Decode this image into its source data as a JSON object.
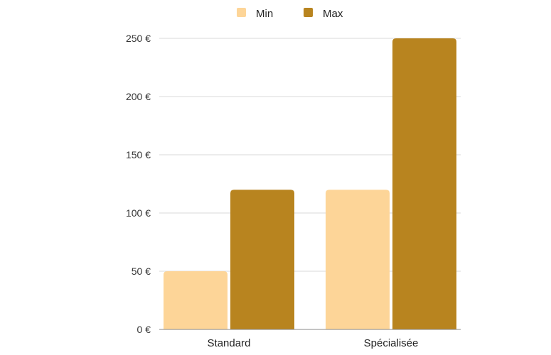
{
  "chart_data": {
    "type": "bar",
    "categories": [
      "Standard",
      "Spécialisée"
    ],
    "series": [
      {
        "name": "Min",
        "values": [
          50,
          120
        ],
        "color": "#fdd598"
      },
      {
        "name": "Max",
        "values": [
          120,
          250
        ],
        "color": "#b8841f"
      }
    ],
    "ylim": [
      0,
      250
    ],
    "yticks": [
      0,
      50,
      100,
      150,
      200,
      250
    ],
    "ytick_labels": [
      "0 €",
      "50 €",
      "100 €",
      "150 €",
      "200 €",
      "250 €"
    ],
    "grid": true,
    "legend_position": "top-center",
    "gridline_color": "#d9d9d9",
    "axis_color": "#888888"
  }
}
